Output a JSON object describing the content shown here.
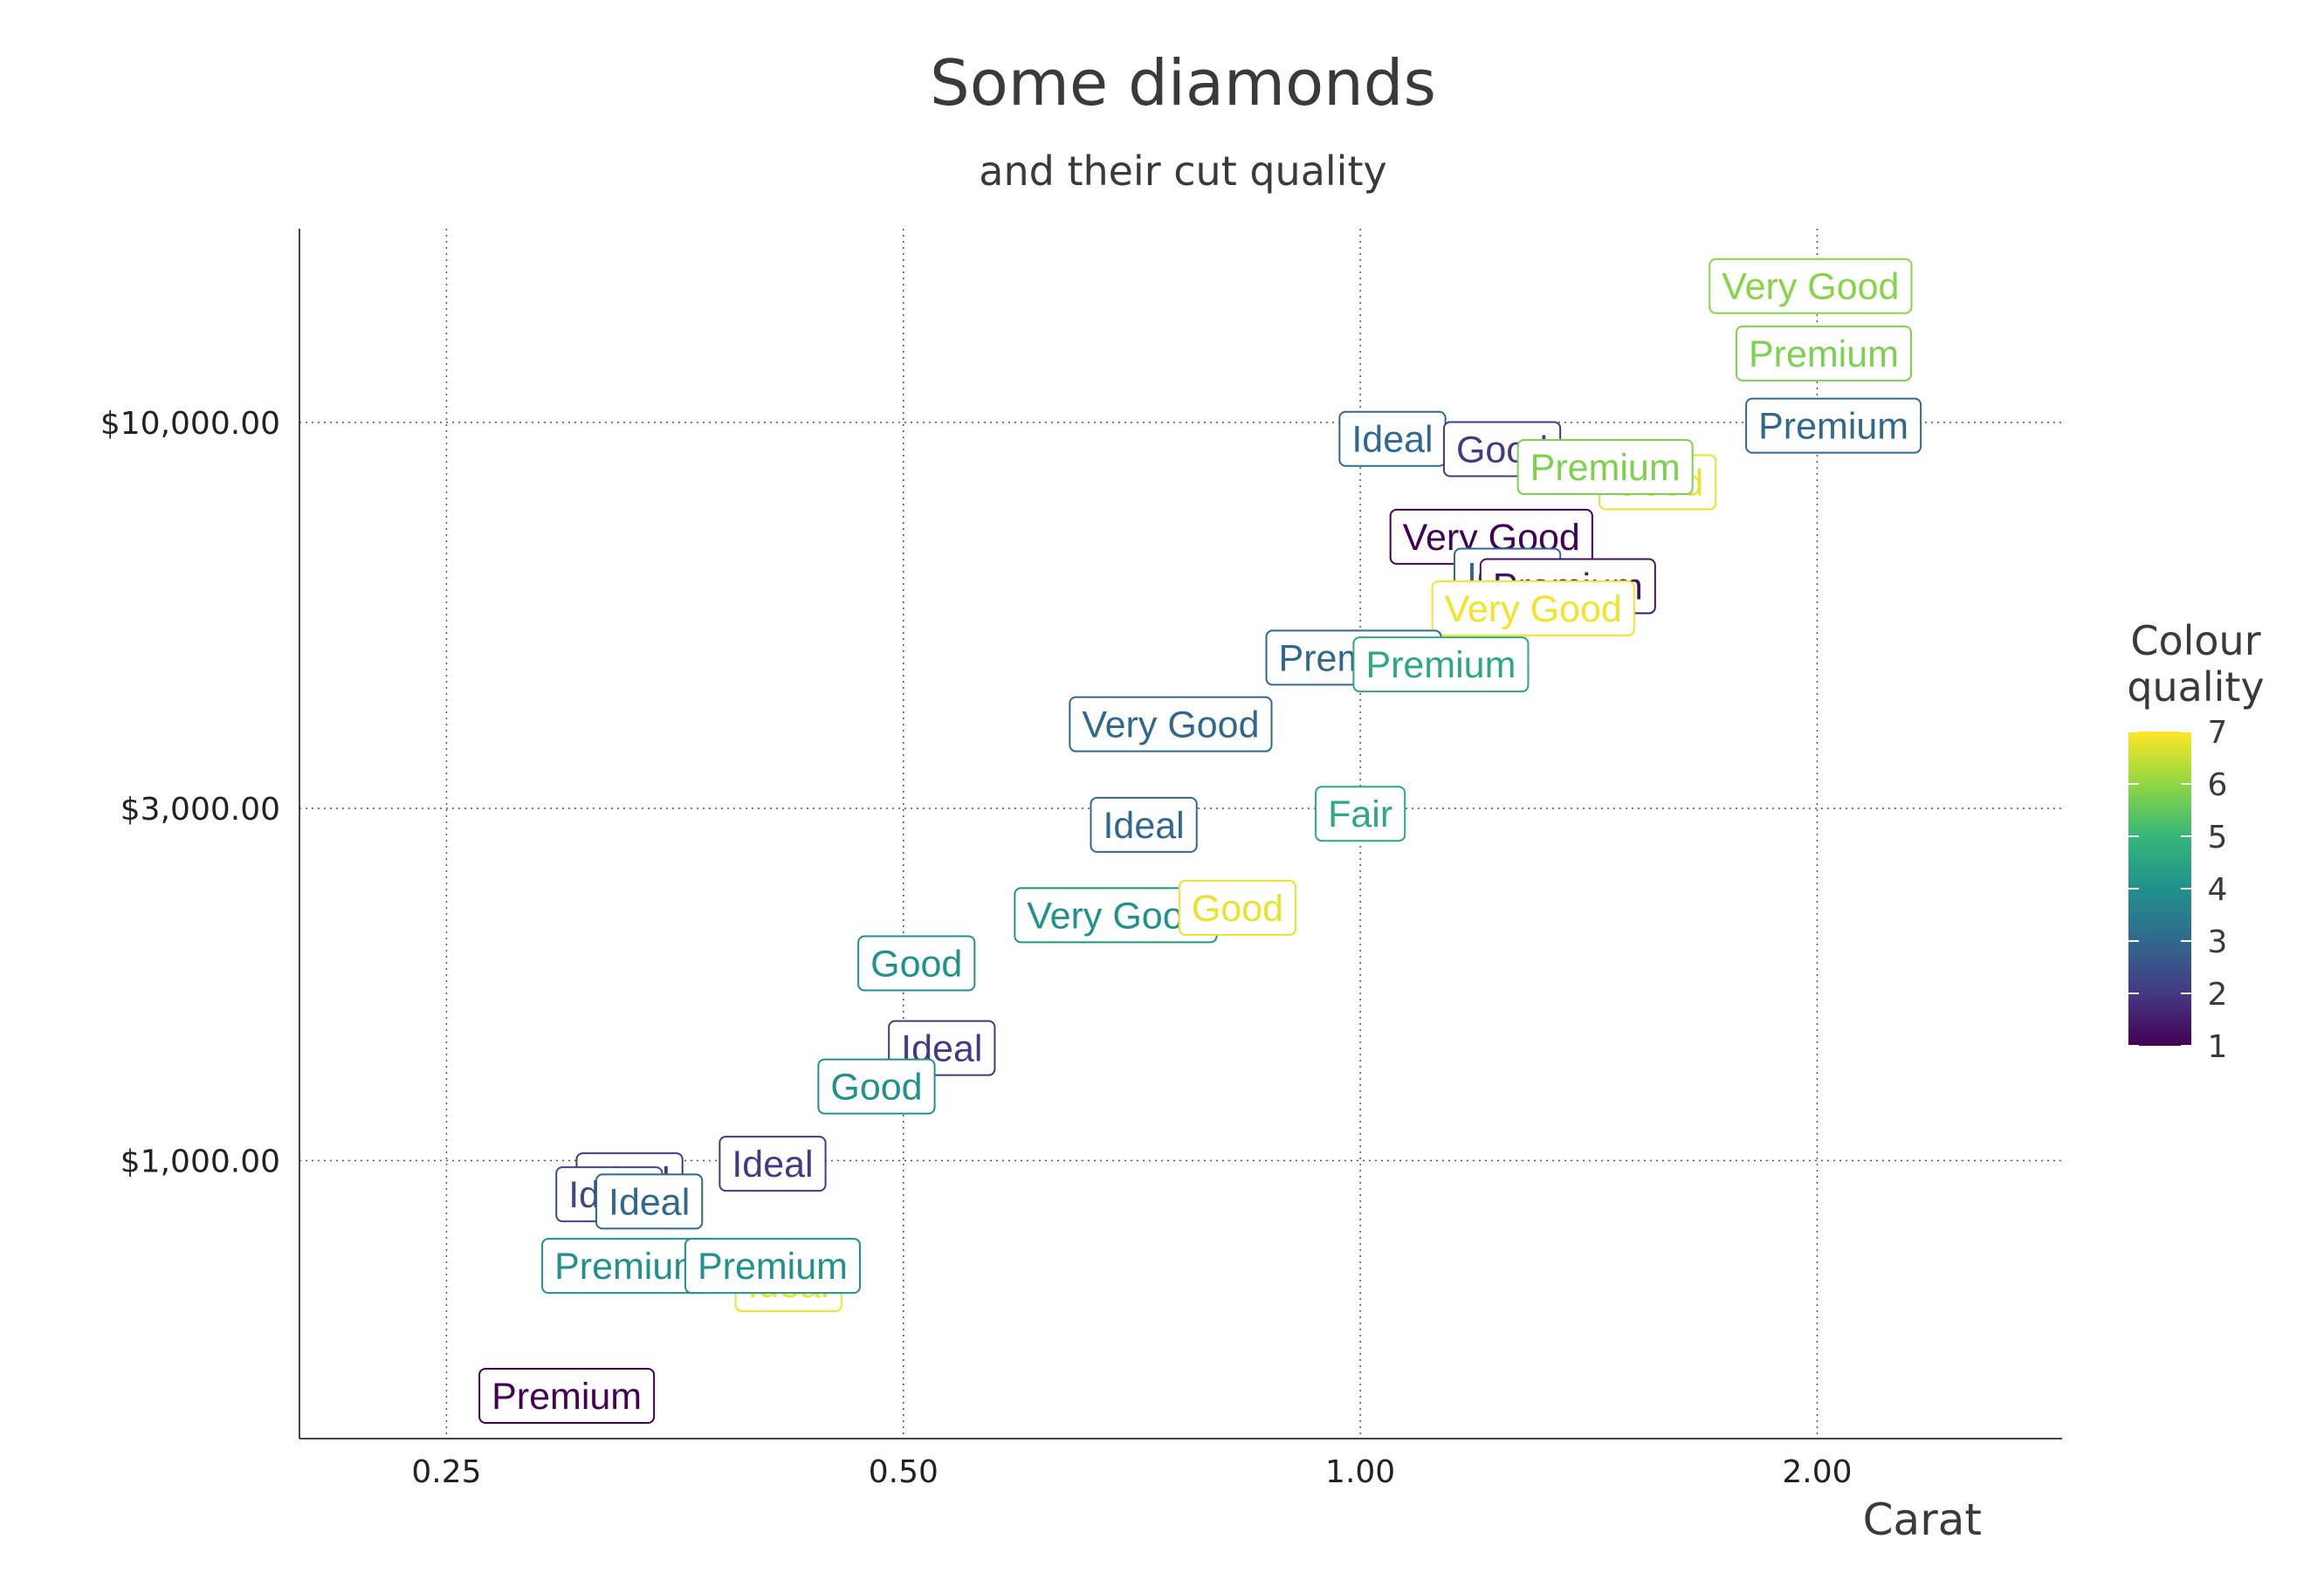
{
  "chart_data": {
    "type": "scatter",
    "title": "Some diamonds",
    "subtitle": "and their cut quality",
    "xlabel": "Carat",
    "ylabel": "",
    "x_scale": "log",
    "y_scale": "log",
    "xlim": [
      0.2,
      2.9
    ],
    "ylim": [
      420,
      18300
    ],
    "x_ticks": [
      0.25,
      0.5,
      1.0,
      2.0
    ],
    "x_tick_labels": [
      "0.25",
      "0.50",
      "1.00",
      "2.00"
    ],
    "y_ticks": [
      1000,
      3000,
      10000
    ],
    "y_tick_labels": [
      "$1,000.00",
      "$3,000.00",
      "$10,000.00"
    ],
    "grid": "dotted major gridlines",
    "legend": {
      "title_lines": [
        "Colour",
        "quality"
      ],
      "placement": "right",
      "min": 1,
      "max": 7,
      "labels": [
        "1",
        "2",
        "3",
        "4",
        "5",
        "6",
        "7"
      ]
    },
    "color_scale": [
      "#440154",
      "#443983",
      "#31688e",
      "#21918c",
      "#35b779",
      "#90d743",
      "#fde725"
    ],
    "points": [
      {
        "x": 1.98,
        "y": 15300,
        "label": "Very Good",
        "color_value": 5.9
      },
      {
        "x": 2.02,
        "y": 12400,
        "label": "Premium",
        "color_value": 5.8
      },
      {
        "x": 2.05,
        "y": 9900,
        "label": "Premium",
        "color_value": 3.0
      },
      {
        "x": 1.05,
        "y": 9500,
        "label": "Ideal",
        "color_value": 3.0
      },
      {
        "x": 1.24,
        "y": 9200,
        "label": "Good",
        "color_value": 2.0
      },
      {
        "x": 1.57,
        "y": 8300,
        "label": "Good",
        "color_value": 6.8
      },
      {
        "x": 1.45,
        "y": 8700,
        "label": "Premium",
        "color_value": 5.8
      },
      {
        "x": 1.22,
        "y": 7000,
        "label": "Very Good",
        "color_value": 1.0
      },
      {
        "x": 1.25,
        "y": 6200,
        "label": "Ideal",
        "color_value": 3.0
      },
      {
        "x": 1.37,
        "y": 6000,
        "label": "Premium",
        "color_value": 1.3
      },
      {
        "x": 1.3,
        "y": 5600,
        "label": "Very Good",
        "color_value": 6.9
      },
      {
        "x": 0.99,
        "y": 4800,
        "label": "Premium",
        "color_value": 3.0
      },
      {
        "x": 1.13,
        "y": 4700,
        "label": "Premium",
        "color_value": 4.6
      },
      {
        "x": 0.75,
        "y": 3900,
        "label": "Very Good",
        "color_value": 3.0
      },
      {
        "x": 0.72,
        "y": 2850,
        "label": "Ideal",
        "color_value": 3.0
      },
      {
        "x": 1.0,
        "y": 2950,
        "label": "Fair",
        "color_value": 4.6
      },
      {
        "x": 0.69,
        "y": 2150,
        "label": "Very Good",
        "color_value": 4.0
      },
      {
        "x": 0.83,
        "y": 2200,
        "label": "Good",
        "color_value": 6.8
      },
      {
        "x": 0.51,
        "y": 1850,
        "label": "Good",
        "color_value": 4.0
      },
      {
        "x": 0.53,
        "y": 1420,
        "label": "Ideal",
        "color_value": 2.0
      },
      {
        "x": 0.48,
        "y": 1260,
        "label": "Good",
        "color_value": 4.0
      },
      {
        "x": 0.41,
        "y": 990,
        "label": "Ideal",
        "color_value": 2.0
      },
      {
        "x": 0.33,
        "y": 940,
        "label": "Ideal",
        "color_value": 2.0
      },
      {
        "x": 0.32,
        "y": 900,
        "label": "Ideal",
        "color_value": 2.3
      },
      {
        "x": 0.34,
        "y": 880,
        "label": "Ideal",
        "color_value": 3.0
      },
      {
        "x": 0.42,
        "y": 680,
        "label": "Ideal",
        "color_value": 6.9
      },
      {
        "x": 0.33,
        "y": 720,
        "label": "Premium",
        "color_value": 4.0
      },
      {
        "x": 0.41,
        "y": 720,
        "label": "Premium",
        "color_value": 4.0
      },
      {
        "x": 0.3,
        "y": 480,
        "label": "Premium",
        "color_value": 1.0
      }
    ]
  }
}
